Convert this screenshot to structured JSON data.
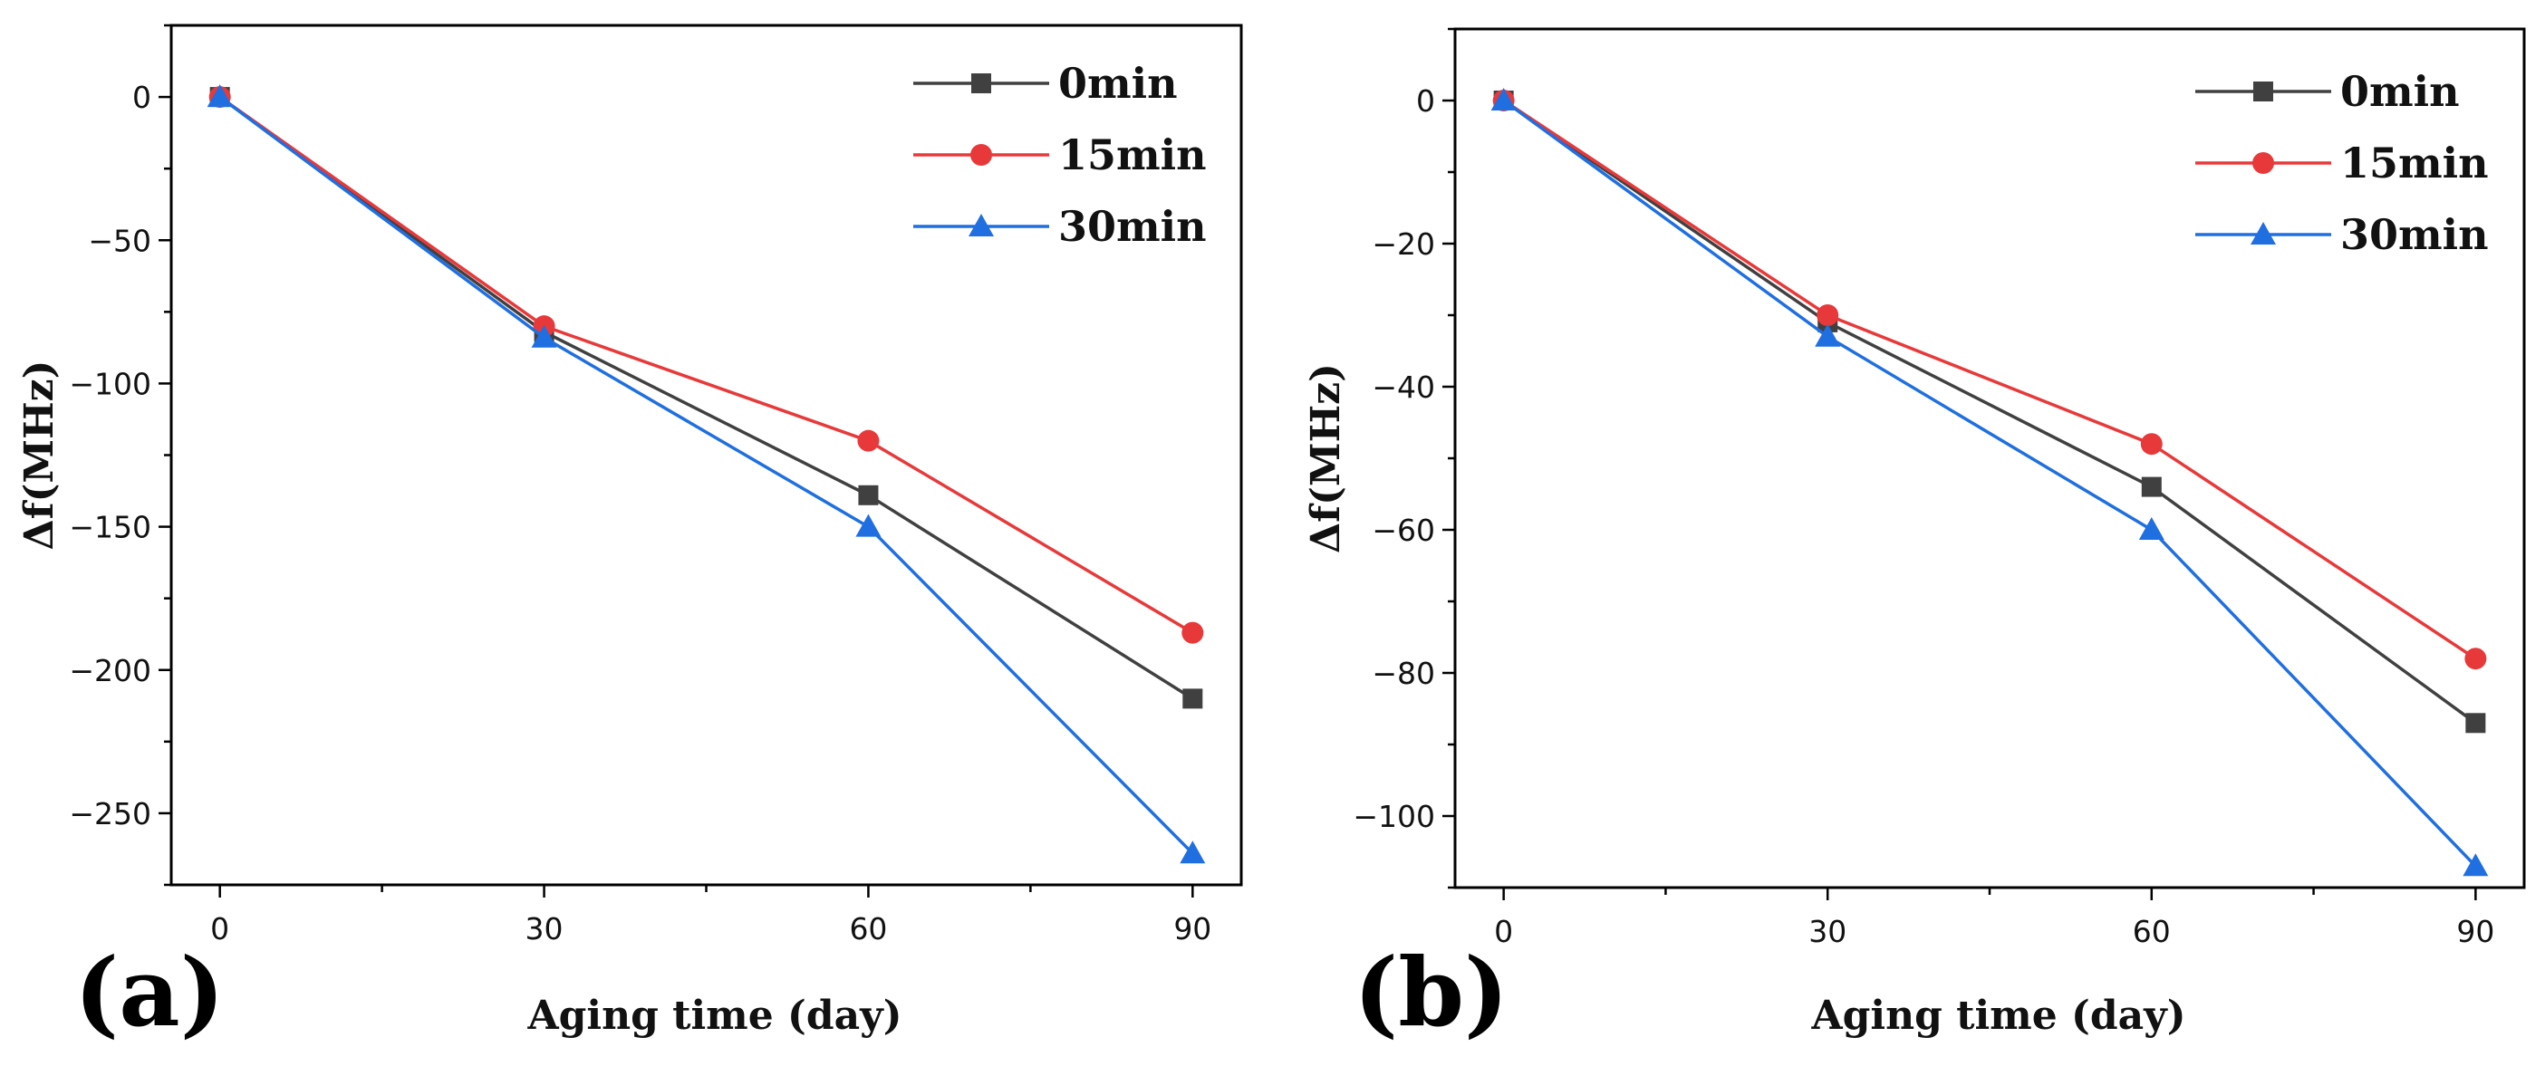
{
  "colors": {
    "0min": "#404040",
    "15min": "#e8393a",
    "30min": "#1f6fe0"
  },
  "chart_data": [
    {
      "type": "line",
      "panel_label": "(a)",
      "title": "",
      "xlabel": "Aging time (day)",
      "ylabel": "Δf(MHz)",
      "x": [
        0,
        30,
        60,
        90
      ],
      "xticks": [
        "0",
        "30",
        "60",
        "90"
      ],
      "xlim": [
        -4.5,
        94.5
      ],
      "ylim": [
        -275,
        25
      ],
      "yticks": [
        "0",
        "−50",
        "−100",
        "−150",
        "−200",
        "−250"
      ],
      "ytick_values": [
        0,
        -50,
        -100,
        -150,
        -200,
        -250
      ],
      "minor_ytick_step": 25,
      "minor_xtick_step": 15,
      "grid": false,
      "legend_position": "top-right",
      "series": [
        {
          "name": "0min",
          "marker": "square",
          "color": "#404040",
          "values": [
            0,
            -82,
            -139,
            -210
          ]
        },
        {
          "name": "15min",
          "marker": "circle",
          "color": "#e8393a",
          "values": [
            0,
            -80,
            -120,
            -187
          ]
        },
        {
          "name": "30min",
          "marker": "triangle",
          "color": "#1f6fe0",
          "values": [
            0,
            -84,
            -150,
            -264
          ]
        }
      ]
    },
    {
      "type": "line",
      "panel_label": "(b)",
      "title": "",
      "xlabel": "Aging time (day)",
      "ylabel": "Δf(MHz)",
      "x": [
        0,
        30,
        60,
        90
      ],
      "xticks": [
        "0",
        "30",
        "60",
        "90"
      ],
      "xlim": [
        -4.5,
        94.5
      ],
      "ylim": [
        -110,
        10
      ],
      "yticks": [
        "0",
        "−20",
        "−40",
        "−60",
        "−80",
        "−100"
      ],
      "ytick_values": [
        0,
        -20,
        -40,
        -60,
        -80,
        -100
      ],
      "minor_ytick_step": 10,
      "minor_xtick_step": 15,
      "grid": false,
      "legend_position": "top-right",
      "series": [
        {
          "name": "0min",
          "marker": "square",
          "color": "#404040",
          "values": [
            0,
            -31,
            -54,
            -87
          ]
        },
        {
          "name": "15min",
          "marker": "circle",
          "color": "#e8393a",
          "values": [
            0,
            -30,
            -48,
            -78
          ]
        },
        {
          "name": "30min",
          "marker": "triangle",
          "color": "#1f6fe0",
          "values": [
            0,
            -33,
            -60,
            -107
          ]
        }
      ]
    }
  ]
}
